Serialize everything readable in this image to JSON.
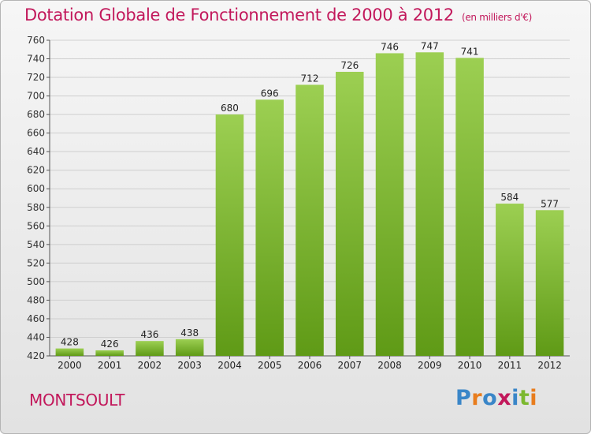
{
  "header": {
    "title": "Dotation Globale de Fonctionnement de 2000 à 2012",
    "unit": "(en milliers d'€)"
  },
  "footer": {
    "commune": "MONTSOULT",
    "logo": "Proxiti"
  },
  "colors": {
    "title": "#c2185b",
    "bar_top": "#9ccf52",
    "bar_bottom": "#5f9a16",
    "grid": "#cfcfcf"
  },
  "chart_data": {
    "type": "bar",
    "title": "Dotation Globale de Fonctionnement de 2000 à 2012",
    "subtitle": "(en milliers d'€)",
    "categories": [
      "2000",
      "2001",
      "2002",
      "2003",
      "2004",
      "2005",
      "2006",
      "2007",
      "2008",
      "2009",
      "2010",
      "2011",
      "2012"
    ],
    "values": [
      428,
      426,
      436,
      438,
      680,
      696,
      712,
      726,
      746,
      747,
      741,
      584,
      577
    ],
    "ylim": [
      420,
      760
    ],
    "ytick_step": 20,
    "grid": true,
    "data_labels": true
  }
}
